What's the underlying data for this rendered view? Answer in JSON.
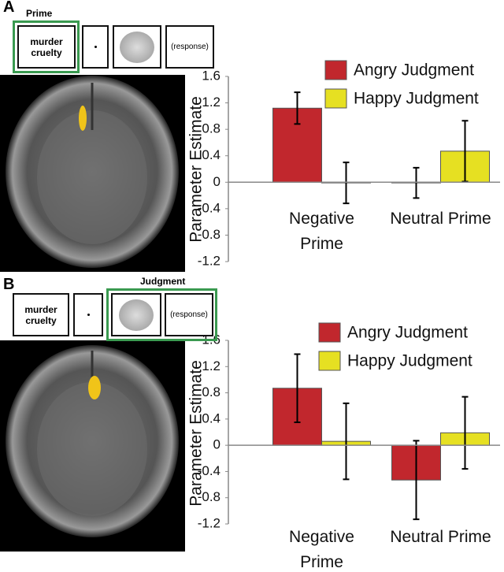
{
  "panels": [
    {
      "label": "A",
      "highlighted_stage": "Prime",
      "stimulus": [
        "murder",
        "cruelty"
      ],
      "response": "(response)"
    },
    {
      "label": "B",
      "highlighted_stage": "Judgment",
      "stimulus": [
        "murder",
        "cruelty"
      ],
      "response": "(response)"
    }
  ],
  "chart_data": [
    {
      "type": "bar",
      "ylabel": "Parameter Estimate",
      "categories": [
        "Negative Prime",
        "Neutral Prime"
      ],
      "series": [
        {
          "name": "Angry Judgment",
          "color": "#c1272d",
          "values": [
            1.12,
            -0.01
          ],
          "errors": [
            0.24,
            0.23
          ]
        },
        {
          "name": "Happy Judgment",
          "color": "#e6e022",
          "values": [
            -0.01,
            0.47
          ],
          "errors": [
            0.31,
            0.46
          ]
        }
      ],
      "ylim": [
        -1.2,
        1.6
      ],
      "yticks": [
        -1.2,
        -0.8,
        -0.4,
        0,
        0.4,
        0.8,
        1.2,
        1.6
      ],
      "legend": "upper right"
    },
    {
      "type": "bar",
      "ylabel": "Parameter Estimate",
      "categories": [
        "Negative Prime",
        "Neutral Prime"
      ],
      "series": [
        {
          "name": "Angry Judgment",
          "color": "#c1272d",
          "values": [
            0.87,
            -0.53
          ],
          "errors": [
            0.52,
            0.6
          ]
        },
        {
          "name": "Happy Judgment",
          "color": "#e6e022",
          "values": [
            0.06,
            0.19
          ],
          "errors": [
            0.58,
            0.55
          ]
        }
      ],
      "ylim": [
        -1.2,
        1.6
      ],
      "yticks": [
        -1.2,
        -0.8,
        -0.4,
        0,
        0.4,
        0.8,
        1.2,
        1.6
      ],
      "legend": "upper right"
    }
  ]
}
